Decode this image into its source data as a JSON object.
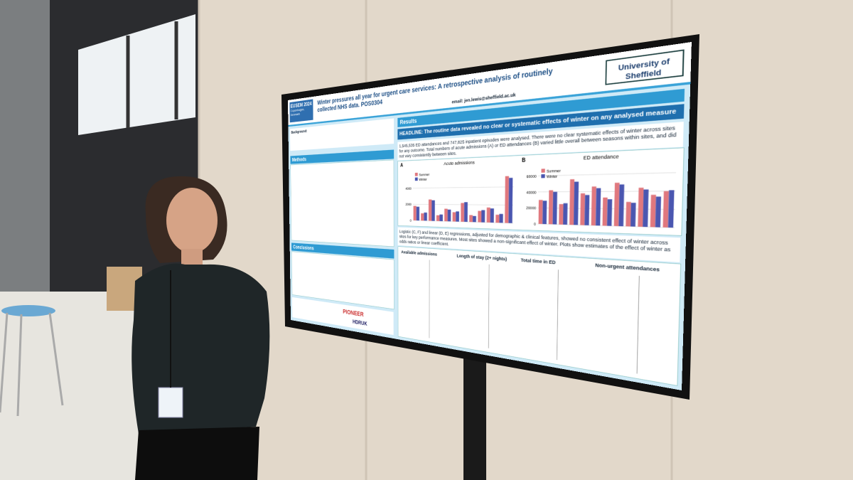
{
  "poster": {
    "conference": "EUSEM 2024",
    "location": "Copenhagen, Denmark",
    "title": "Winter pressures all year for urgent care services: A retrospective analysis of routinely collected NHS data. POS0304",
    "institution": "University of Sheffield",
    "email": "email: jen.lewis@sheffield.ac.uk",
    "background": "Background:",
    "methods": "Methods",
    "conclusions": "Conclusions",
    "results": "Results",
    "headline": "HEADLINE: The routine data revealed no clear or systematic effects of winter on any analysed measure",
    "results_text": "1,545,535 ED attendances and 747,825 inpatient episodes were analysed. There were no clear systematic effects of winter across sites for any outcome. Total numbers of acute admissions (A) or ED attendances (B) varied little overall between seasons within sites, and did not vary consistently between sites.",
    "regression_text": "Logistic (C, F) and linear (D, E) regressions, adjusted for demographic & clinical features, showed no consistent effect of winter across sites for key performance measures. Most sites showed a non-significant effect of winter. Plots show estimates of the effect of winter as odds ratios or linear coefficient.",
    "forest_titles": [
      "Available admissions",
      "Length of stay (2+ nights)",
      "Total time in ED",
      "Non-urgent attendances"
    ],
    "logos": [
      "PIONEER",
      "HDRUK"
    ]
  },
  "chart_data": [
    {
      "type": "bar",
      "label": "A",
      "title": "Acute admissions",
      "categories": [
        null,
        null,
        null,
        null,
        null,
        null,
        null,
        null,
        null,
        null,
        null,
        null
      ],
      "series": [
        {
          "name": "Summer",
          "color": "#e0787e",
          "values": [
            1800,
            900,
            2600,
            700,
            1500,
            1100,
            2200,
            800,
            1300,
            1700,
            900,
            5200
          ]
        },
        {
          "name": "Winter",
          "color": "#4a56b0",
          "values": [
            1700,
            1000,
            2500,
            800,
            1400,
            1200,
            2300,
            700,
            1400,
            1600,
            1000,
            5000
          ]
        }
      ],
      "ylim": [
        0,
        6000
      ],
      "yticks": [
        0,
        2000,
        4000
      ]
    },
    {
      "type": "bar",
      "label": "B",
      "title": "ED attendance",
      "categories": [
        null,
        null,
        null,
        null,
        null,
        null,
        null,
        null,
        null,
        null,
        null,
        null
      ],
      "series": [
        {
          "name": "Summer",
          "color": "#e0787e",
          "values": [
            30000,
            42000,
            25000,
            55000,
            38000,
            46000,
            33000,
            50000,
            28000,
            44000,
            36000,
            40000
          ]
        },
        {
          "name": "Winter",
          "color": "#4a56b0",
          "values": [
            29000,
            40000,
            26000,
            52000,
            36000,
            44000,
            31000,
            48000,
            27000,
            42000,
            34000,
            41000
          ]
        }
      ],
      "ylim": [
        0,
        70000
      ],
      "yticks": [
        0,
        20000,
        40000,
        60000
      ]
    }
  ]
}
